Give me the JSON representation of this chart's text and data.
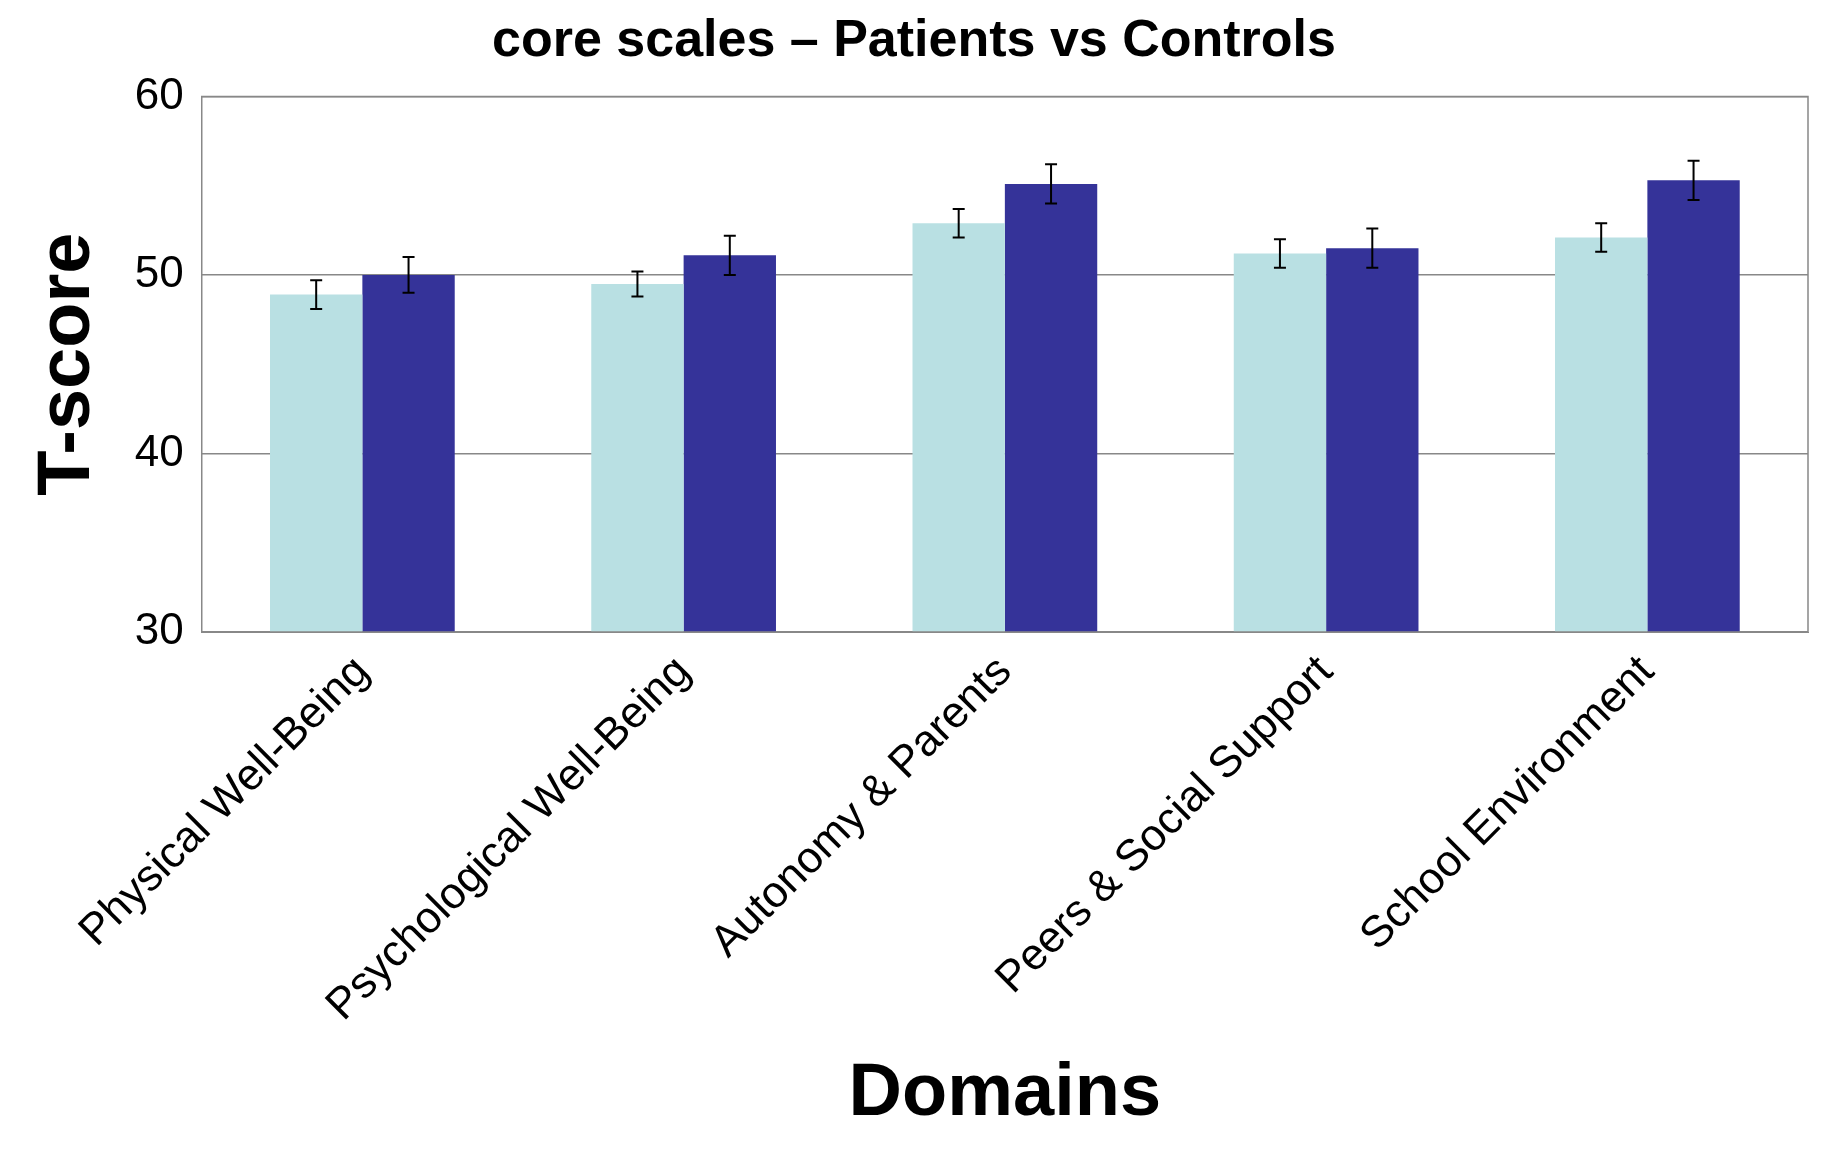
{
  "chart_data": {
    "type": "bar",
    "title": "core scales – Patients vs Controls",
    "xlabel": "Domains",
    "ylabel": "T-score",
    "categories": [
      "Physical Well-Being",
      "Psychological Well-Being",
      "Autonomy & Parents",
      "Peers & Social Support",
      "School Environment"
    ],
    "series": [
      {
        "color": "#b9e0e3",
        "values": [
          48.9,
          49.5,
          52.9,
          51.2,
          52.1
        ],
        "errors": [
          0.8,
          0.7,
          0.8,
          0.8,
          0.8
        ]
      },
      {
        "color": "#353399",
        "values": [
          50.0,
          51.1,
          55.1,
          51.5,
          55.3
        ],
        "errors": [
          1.0,
          1.1,
          1.1,
          1.1,
          1.1
        ]
      }
    ],
    "ylim": [
      30,
      60
    ],
    "yticks": [
      30,
      40,
      50,
      60
    ],
    "grid": "y",
    "legend": false
  }
}
